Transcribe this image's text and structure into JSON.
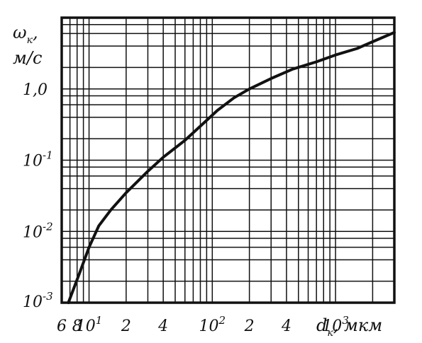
{
  "chart_data": {
    "type": "line",
    "x_scale": "log",
    "y_scale": "log",
    "xlim": [
      6,
      3000
    ],
    "ylim": [
      0.001,
      10
    ],
    "grid": true,
    "xlabel": {
      "main": "d",
      "sub": "к",
      "unit": ", мкм"
    },
    "ylabel": {
      "main": "ω",
      "sub": "к",
      "sep": ",",
      "unit": "м/с"
    },
    "x_ticks": [
      {
        "value": 6,
        "base": "6",
        "exp": ""
      },
      {
        "value": 8,
        "base": "8",
        "exp": ""
      },
      {
        "value": 10,
        "base": "10",
        "exp": "1"
      },
      {
        "value": 20,
        "base": "2",
        "exp": ""
      },
      {
        "value": 40,
        "base": "4",
        "exp": ""
      },
      {
        "value": 100,
        "base": "10",
        "exp": "2"
      },
      {
        "value": 200,
        "base": "2",
        "exp": ""
      },
      {
        "value": 400,
        "base": "4",
        "exp": ""
      },
      {
        "value": 1000,
        "base": "10",
        "exp": "3"
      }
    ],
    "y_ticks": [
      {
        "value": 1,
        "base": "1,0",
        "exp": ""
      },
      {
        "value": 0.1,
        "base": "10",
        "exp": "-1"
      },
      {
        "value": 0.01,
        "base": "10",
        "exp": "-2"
      },
      {
        "value": 0.001,
        "base": "10",
        "exp": "-3"
      }
    ],
    "series": [
      {
        "x": [
          6.8,
          8.3,
          10,
          12,
          15,
          20,
          30,
          40,
          60,
          80,
          110,
          150,
          200,
          300,
          450,
          700,
          1000,
          1500,
          2000,
          3000
        ],
        "y": [
          0.001,
          0.0025,
          0.006,
          0.012,
          0.02,
          0.035,
          0.07,
          0.11,
          0.19,
          0.3,
          0.5,
          0.75,
          1.0,
          1.4,
          1.9,
          2.4,
          3.0,
          3.7,
          4.6,
          6.2
        ]
      }
    ]
  }
}
